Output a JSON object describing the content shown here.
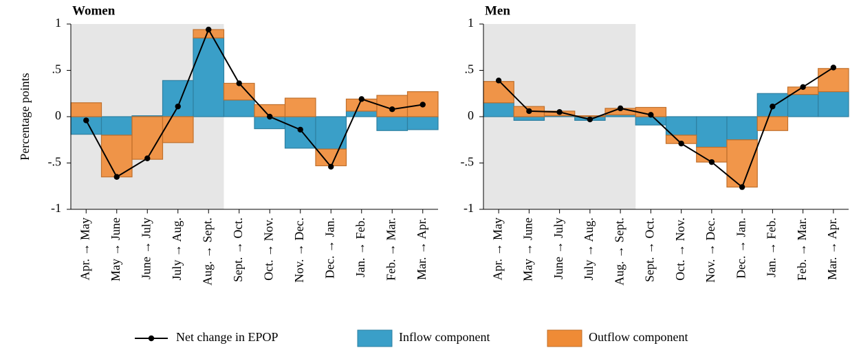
{
  "chart_data": [
    {
      "type": "bar",
      "title": "Women",
      "ylabel": "Percentage points",
      "categories": [
        "Apr. → May",
        "May → June",
        "June → July",
        "July → Aug.",
        "Aug. → Sept.",
        "Sept. → Oct.",
        "Oct. → Nov.",
        "Nov. → Dec.",
        "Dec. → Jan.",
        "Jan. → Feb.",
        "Feb. → Mar.",
        "Mar. → Apr."
      ],
      "series": [
        {
          "name": "Net change in EPOP",
          "type": "line",
          "color": "#000000",
          "values": [
            -0.04,
            -0.65,
            -0.45,
            0.11,
            0.94,
            0.36,
            0.0,
            -0.14,
            -0.54,
            0.19,
            0.08,
            0.13
          ]
        },
        {
          "name": "Inflow component",
          "type": "bar",
          "color": "#3a9fc8",
          "values": [
            -0.19,
            -0.2,
            0.01,
            0.39,
            0.85,
            0.18,
            -0.13,
            -0.34,
            -0.35,
            0.06,
            -0.15,
            -0.14
          ]
        },
        {
          "name": "Outflow component",
          "type": "bar",
          "color": "#ef8b36",
          "values": [
            0.15,
            -0.45,
            -0.46,
            -0.28,
            0.09,
            0.18,
            0.13,
            0.2,
            -0.18,
            0.13,
            0.23,
            0.27
          ]
        }
      ],
      "ylim": [
        -1,
        1
      ],
      "yticks": [
        -1,
        {
          "value": -0.5,
          "label": "-.5"
        },
        0,
        {
          "value": 0.5,
          "label": ".5"
        },
        1
      ]
    },
    {
      "type": "bar",
      "title": "Men",
      "categories": [
        "Apr. → May",
        "May → June",
        "June → July",
        "July → Aug.",
        "Aug. → Sept.",
        "Sept. → Oct.",
        "Oct. → Nov.",
        "Nov. → Dec.",
        "Dec. → Jan.",
        "Jan. → Feb.",
        "Feb. → Mar.",
        "Mar. → Apr."
      ],
      "series": [
        {
          "name": "Net change in EPOP",
          "type": "line",
          "color": "#000000",
          "values": [
            0.39,
            0.06,
            0.05,
            -0.03,
            0.09,
            0.02,
            -0.29,
            -0.49,
            -0.76,
            0.11,
            0.32,
            0.53
          ]
        },
        {
          "name": "Inflow component",
          "type": "bar",
          "color": "#3a9fc8",
          "values": [
            0.15,
            -0.04,
            0.01,
            -0.04,
            0.02,
            -0.09,
            -0.2,
            -0.33,
            -0.25,
            0.25,
            0.24,
            0.27
          ]
        },
        {
          "name": "Outflow component",
          "type": "bar",
          "color": "#ef8b36",
          "values": [
            0.23,
            0.11,
            0.05,
            0.01,
            0.07,
            0.1,
            -0.09,
            -0.16,
            -0.51,
            -0.15,
            0.08,
            0.25
          ]
        }
      ],
      "ylim": [
        -1,
        1
      ],
      "yticks": [
        -1,
        {
          "value": -0.5,
          "label": "-.5"
        },
        0,
        {
          "value": 0.5,
          "label": ".5"
        },
        1
      ]
    }
  ]
}
